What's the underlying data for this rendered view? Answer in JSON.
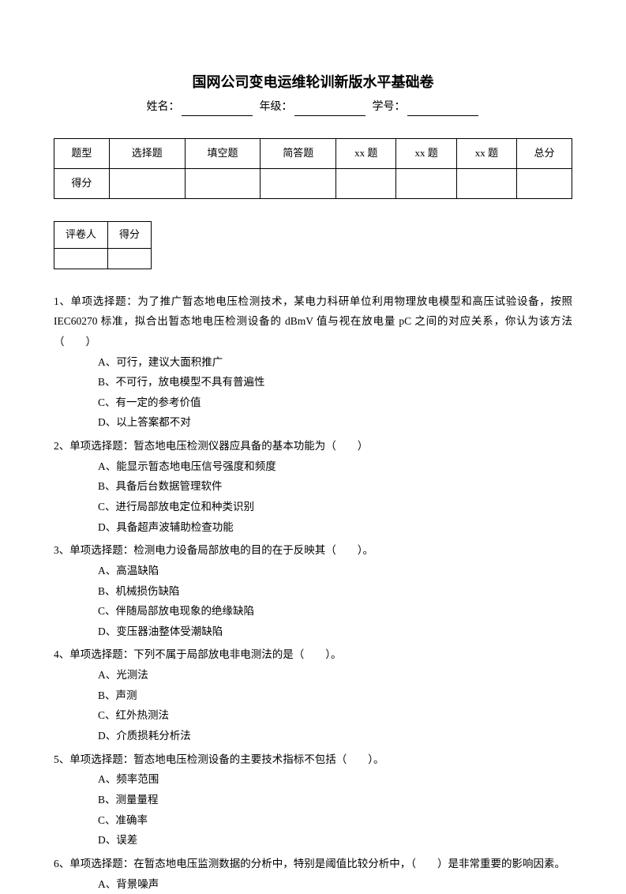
{
  "title": "国网公司变电运维轮训新版水平基础卷",
  "info": {
    "name_label": "姓名：",
    "grade_label": "年级：",
    "id_label": "学号："
  },
  "score_table": {
    "headers": [
      "题型",
      "选择题",
      "填空题",
      "简答题",
      "xx 题",
      "xx 题",
      "xx 题",
      "总分"
    ],
    "row_label": "得分"
  },
  "rater_table": {
    "headers": [
      "评卷人",
      "得分"
    ]
  },
  "questions": [
    {
      "num": "1、",
      "text": "单项选择题：为了推广暂态地电压检测技术，某电力科研单位利用物理放电模型和高压试验设备，按照IEC60270 标准，拟合出暂态地电压检测设备的 dBmV 值与视在放电量 pC 之间的对应关系，你认为该方法（　　）",
      "options": [
        "A、可行，建议大面积推广",
        "B、不可行，放电模型不具有普遍性",
        "C、有一定的参考价值",
        "D、以上答案都不对"
      ]
    },
    {
      "num": "2、",
      "text": "单项选择题：暂态地电压检测仪器应具备的基本功能为（　　）",
      "options": [
        "A、能显示暂态地电压信号强度和频度",
        "B、具备后台数据管理软件",
        "C、进行局部放电定位和种类识别",
        "D、具备超声波辅助检查功能"
      ]
    },
    {
      "num": "3、",
      "text": "单项选择题：检测电力设备局部放电的目的在于反映其（　　）。",
      "options": [
        "A、高温缺陷",
        "B、机械损伤缺陷",
        "C、伴随局部放电现象的绝缘缺陷",
        "D、变压器油整体受潮缺陷"
      ]
    },
    {
      "num": "4、",
      "text": "单项选择题：下列不属于局部放电非电测法的是（　　）。",
      "options": [
        "A、光测法",
        "B、声测",
        "C、红外热测法",
        "D、介质损耗分析法"
      ]
    },
    {
      "num": "5、",
      "text": "单项选择题：暂态地电压检测设备的主要技术指标不包括（　　）。",
      "options": [
        "A、频率范围",
        "B、测量量程",
        "C、准确率",
        "D、误差"
      ]
    },
    {
      "num": "6、",
      "text": "单项选择题：在暂态地电压监测数据的分析中，特别是阈值比较分析中，（　　）是非常重要的影响因素。",
      "options": [
        "A、背景噪声"
      ]
    }
  ]
}
